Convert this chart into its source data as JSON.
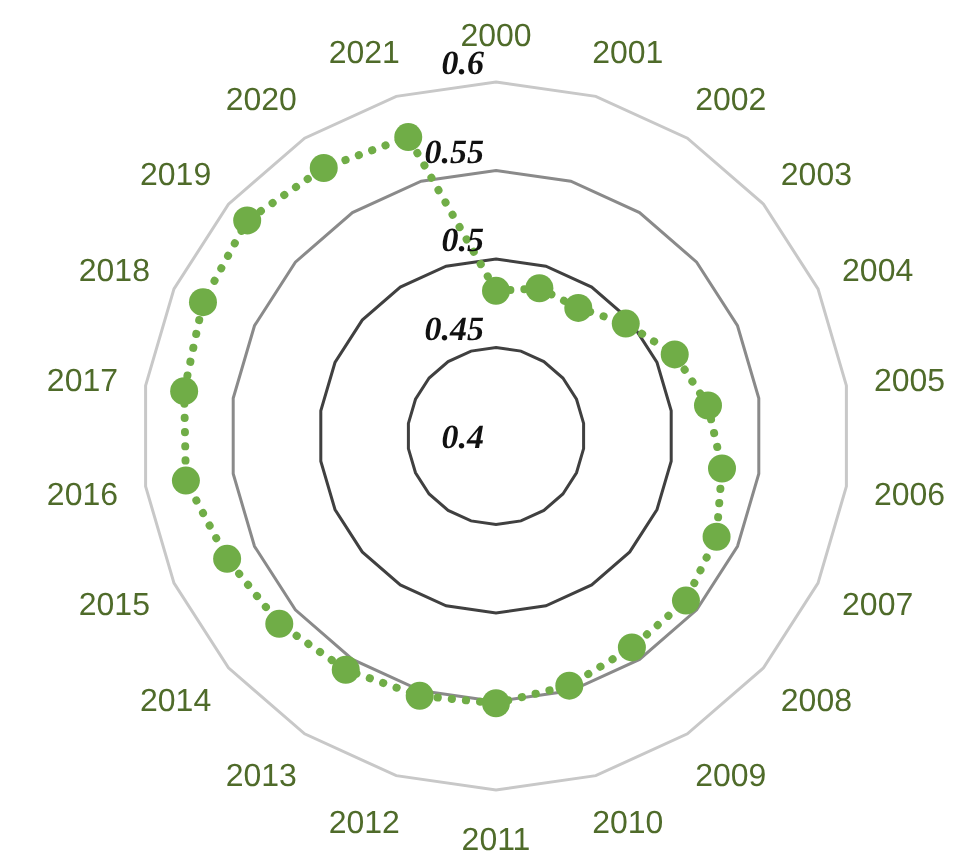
{
  "chart_data": {
    "type": "radar",
    "categories": [
      "2000",
      "2001",
      "2002",
      "2003",
      "2004",
      "2005",
      "2006",
      "2007",
      "2008",
      "2009",
      "2010",
      "2011",
      "2012",
      "2013",
      "2014",
      "2015",
      "2016",
      "2017",
      "2018",
      "2019",
      "2020",
      "2021"
    ],
    "series": [
      {
        "color": "#70ad47",
        "values": [
          0.482,
          0.487,
          0.486,
          0.497,
          0.511,
          0.521,
          0.529,
          0.537,
          0.542,
          0.542,
          0.547,
          0.551,
          0.553,
          0.557,
          0.562,
          0.567,
          0.577,
          0.578,
          0.582,
          0.586,
          0.58,
          0.576
        ]
      }
    ],
    "ylim": [
      0.4,
      0.6
    ],
    "yticks": [
      0.4,
      0.45,
      0.5,
      0.55,
      0.6
    ],
    "grid": true,
    "marker": "circle",
    "line_style": "dotted"
  }
}
